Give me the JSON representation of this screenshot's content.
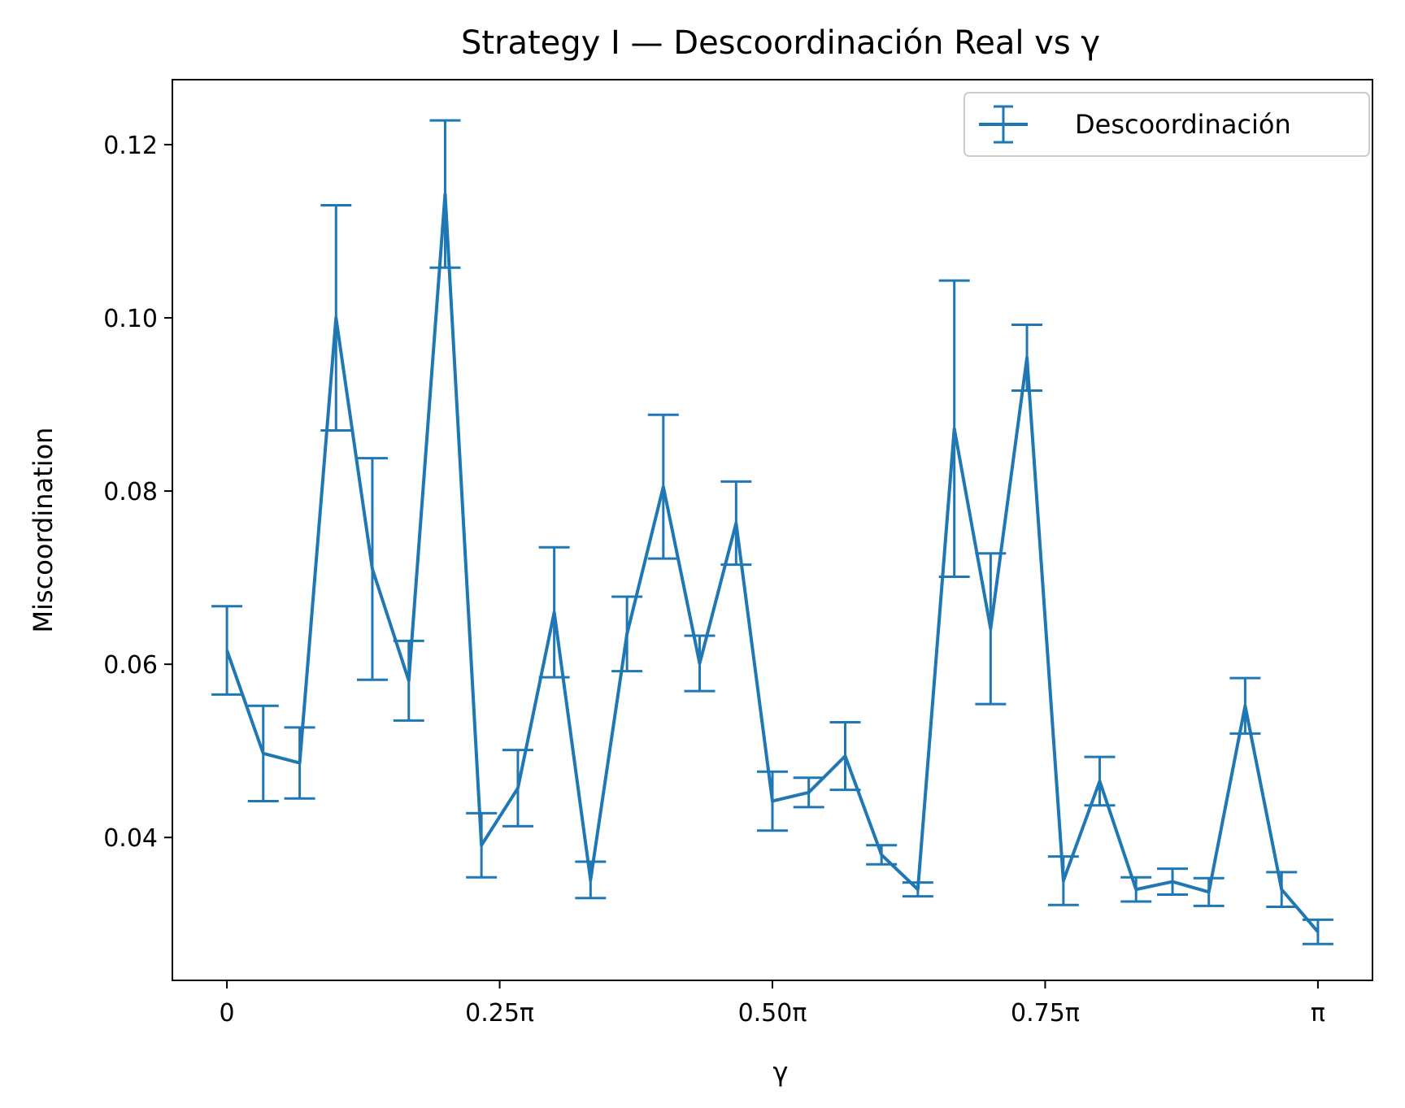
{
  "chart_data": {
    "type": "line",
    "title": "Strategy I — Descoordinación Real vs γ",
    "xlabel": "γ",
    "ylabel": "Miscoordination",
    "xlim_over_pi": [
      -0.05,
      1.05
    ],
    "ylim": [
      0.0235,
      0.1275
    ],
    "x_ticks": [
      {
        "value_over_pi": 0,
        "label": "0"
      },
      {
        "value_over_pi": 0.25,
        "label": "0.25π"
      },
      {
        "value_over_pi": 0.5,
        "label": "0.50π"
      },
      {
        "value_over_pi": 0.75,
        "label": "0.75π"
      },
      {
        "value_over_pi": 1.0,
        "label": "π"
      }
    ],
    "y_ticks": [
      {
        "value": 0.04,
        "label": "0.04"
      },
      {
        "value": 0.06,
        "label": "0.06"
      },
      {
        "value": 0.08,
        "label": "0.08"
      },
      {
        "value": 0.1,
        "label": "0.10"
      },
      {
        "value": 0.12,
        "label": "0.12"
      }
    ],
    "grid": false,
    "legend": {
      "position": "top-right"
    },
    "color": "#1f77b4",
    "series": [
      {
        "name": "Descoordinación",
        "x_over_pi": [
          0,
          0.0333,
          0.0667,
          0.1,
          0.1333,
          0.1667,
          0.2,
          0.2333,
          0.2667,
          0.3,
          0.3333,
          0.3667,
          0.4,
          0.4333,
          0.4667,
          0.5,
          0.5333,
          0.5667,
          0.6,
          0.6333,
          0.6667,
          0.7,
          0.7333,
          0.7667,
          0.8,
          0.8333,
          0.8667,
          0.9,
          0.9333,
          0.9667,
          1.0
        ],
        "y": [
          0.0616,
          0.0497,
          0.0486,
          0.1,
          0.071,
          0.0581,
          0.1143,
          0.0391,
          0.0457,
          0.066,
          0.0351,
          0.0635,
          0.0805,
          0.0601,
          0.0763,
          0.0442,
          0.0452,
          0.0494,
          0.038,
          0.034,
          0.0872,
          0.0641,
          0.0954,
          0.035,
          0.0465,
          0.034,
          0.0349,
          0.0337,
          0.0552,
          0.034,
          0.0291
        ],
        "err": [
          0.0051,
          0.0055,
          0.0041,
          0.013,
          0.0128,
          0.0046,
          0.0085,
          0.0037,
          0.0044,
          0.0075,
          0.0021,
          0.0043,
          0.0083,
          0.0032,
          0.0048,
          0.0034,
          0.0017,
          0.0039,
          0.0011,
          0.0008,
          0.0171,
          0.0087,
          0.0038,
          0.0028,
          0.0028,
          0.0014,
          0.0015,
          0.0016,
          0.0032,
          0.002,
          0.0014
        ]
      }
    ]
  }
}
